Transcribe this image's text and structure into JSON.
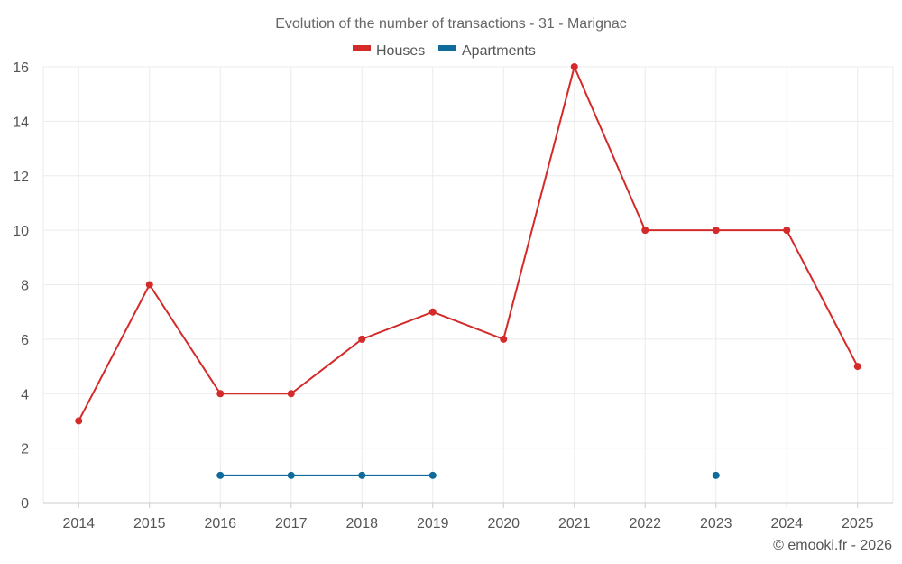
{
  "chart_data": {
    "type": "line",
    "title": "Evolution of the number of transactions - 31 - Marignac",
    "credit": "© emooki.fr - 2026",
    "categories": [
      "2014",
      "2015",
      "2016",
      "2017",
      "2018",
      "2019",
      "2020",
      "2021",
      "2022",
      "2023",
      "2024",
      "2025"
    ],
    "ylim": [
      0,
      16
    ],
    "yticks": [
      0,
      2,
      4,
      6,
      8,
      10,
      12,
      14,
      16
    ],
    "grid": true,
    "legend_position": "top-center",
    "xlabel": "",
    "ylabel": "",
    "series": [
      {
        "name": "Houses",
        "color": "#d42a2a",
        "values": [
          3,
          8,
          4,
          4,
          6,
          7,
          6,
          16,
          10,
          10,
          10,
          5
        ]
      },
      {
        "name": "Apartments",
        "color": "#0e6b9b",
        "values": [
          null,
          null,
          1,
          1,
          1,
          1,
          null,
          null,
          null,
          1,
          null,
          null
        ]
      }
    ]
  }
}
